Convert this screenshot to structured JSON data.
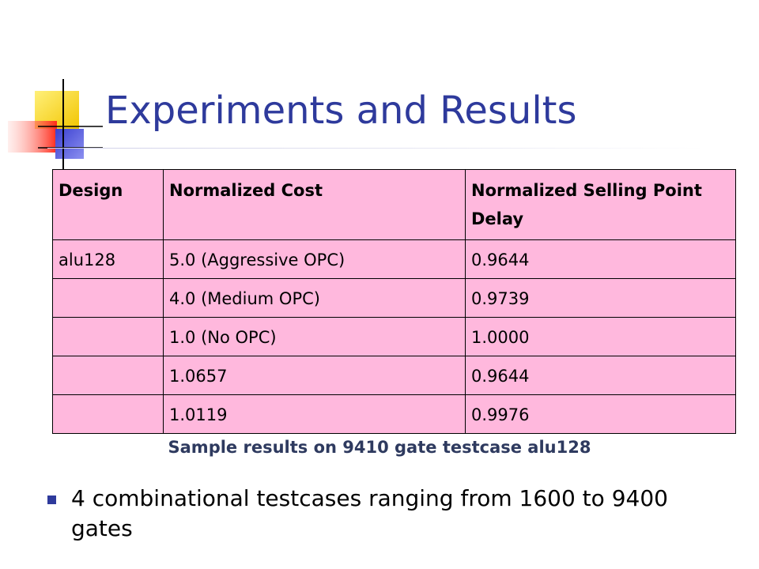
{
  "slide": {
    "title": "Experiments and Results",
    "table": {
      "headers": [
        "Design",
        "Normalized Cost",
        "Normalized Selling Point Delay"
      ],
      "rows": [
        [
          "alu128",
          "5.0 (Aggressive OPC)",
          "0.9644"
        ],
        [
          "",
          "4.0 (Medium OPC)",
          "0.9739"
        ],
        [
          "",
          "1.0 (No OPC)",
          "1.0000"
        ],
        [
          "",
          "1.0657",
          "0.9644"
        ],
        [
          "",
          "1.0119",
          "0.9976"
        ]
      ]
    },
    "caption": "Sample results on 9410 gate testcase alu128",
    "bullets": [
      "4 combinational testcases ranging from 1600 to 9400 gates"
    ]
  },
  "colors": {
    "title": "#2E3A9C",
    "table_fill": "#FFB8DD",
    "caption": "#2E3A5F",
    "bullet": "#2E3A9C"
  }
}
